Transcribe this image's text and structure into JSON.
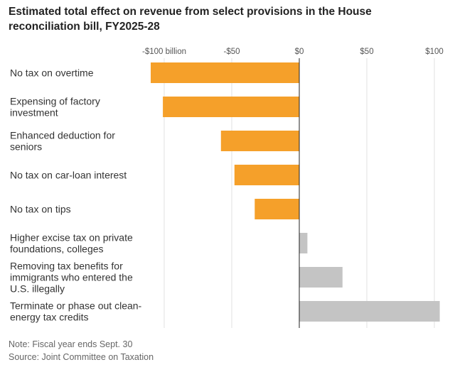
{
  "chart_data": {
    "type": "bar",
    "orientation": "horizontal",
    "title": "Estimated total effect on revenue from select provisions in the House reconciliation bill, FY2025-28",
    "categories": [
      [
        "No tax on overtime"
      ],
      [
        "Expensing of factory",
        "investment"
      ],
      [
        "Enhanced deduction for",
        "seniors"
      ],
      [
        "No tax on car-loan interest"
      ],
      [
        "No tax on tips"
      ],
      [
        "Higher excise tax on private",
        "foundations, colleges"
      ],
      [
        "Removing tax benefits for",
        "immigrants who entered the",
        "U.S. illegally"
      ],
      [
        "Terminate or phase out clean-",
        "energy tax credits"
      ]
    ],
    "values": [
      -110,
      -101,
      -58,
      -48,
      -33,
      6,
      32,
      104
    ],
    "xlim": [
      -100,
      100
    ],
    "xticks": [
      -100,
      -50,
      0,
      50,
      100
    ],
    "xtick_labels": [
      "-$100 billion",
      "-$50",
      "$0",
      "$50",
      "$100"
    ],
    "xlabel": "",
    "ylabel": "",
    "grid": true,
    "colors": {
      "negative": "#f5a02a",
      "positive": "#c4c4c4"
    }
  },
  "footer": {
    "note": "Note: Fiscal year ends Sept. 30",
    "source": "Source: Joint Committee on Taxation"
  }
}
